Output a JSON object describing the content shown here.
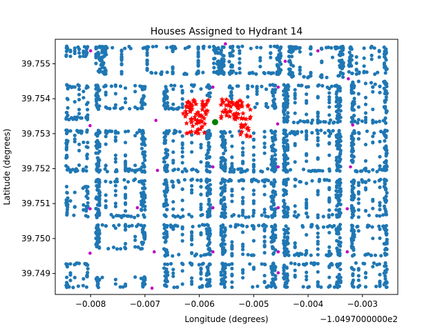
{
  "chart_data": {
    "type": "scatter",
    "title": "Houses Assigned to Hydrant 14",
    "xlabel": "Longitude (degrees)",
    "ylabel": "Latitude (degrees)",
    "x_offset_label": "−1.0497000000e2",
    "xlim": [
      -0.00865,
      -0.00235
    ],
    "ylim": [
      39.7484,
      39.7557
    ],
    "x_ticks": [
      -0.008,
      -0.007,
      -0.006,
      -0.005,
      -0.004,
      -0.003
    ],
    "x_tick_labels": [
      "−0.008",
      "−0.007",
      "−0.006",
      "−0.005",
      "−0.004",
      "−0.003"
    ],
    "y_ticks": [
      39.749,
      39.75,
      39.751,
      39.752,
      39.753,
      39.754,
      39.755
    ],
    "y_tick_labels": [
      "39.749",
      "39.750",
      "39.751",
      "39.752",
      "39.753",
      "39.754",
      "39.755"
    ],
    "grid": false,
    "colors": {
      "houses": "#1f77b4",
      "assigned": "#ff0000",
      "hydrant": "#008000",
      "other_hydrants": "#bf00bf"
    },
    "selected_hydrant": {
      "x": -0.00571,
      "y": 39.75333
    },
    "other_hydrants": [
      [
        -0.008,
        39.75537
      ],
      [
        -0.00552,
        39.75557
      ],
      [
        -0.00442,
        39.75507
      ],
      [
        -0.00382,
        39.75537
      ],
      [
        -0.00326,
        39.75457
      ],
      [
        -0.00575,
        39.75433
      ],
      [
        -0.00455,
        39.75433
      ],
      [
        -0.00801,
        39.75323
      ],
      [
        -0.0068,
        39.75338
      ],
      [
        -0.00456,
        39.75328
      ],
      [
        -0.00318,
        39.75325
      ],
      [
        -0.00677,
        39.75195
      ],
      [
        -0.00575,
        39.75205
      ],
      [
        -0.00455,
        39.75205
      ],
      [
        -0.00322,
        39.75205
      ],
      [
        -0.00801,
        39.75085
      ],
      [
        -0.00714,
        39.75088
      ],
      [
        -0.00575,
        39.75088
      ],
      [
        -0.00455,
        39.75088
      ],
      [
        -0.00328,
        39.75085
      ],
      [
        -0.00801,
        39.74958
      ],
      [
        -0.00683,
        39.74962
      ],
      [
        -0.00575,
        39.74962
      ],
      [
        -0.00455,
        39.74962
      ],
      [
        -0.00328,
        39.74962
      ],
      [
        -0.00687,
        39.74858
      ],
      [
        -0.00455,
        39.74902
      ]
    ],
    "blocks": [
      [
        -0.00845,
        -0.00805,
        39.7552,
        39.7555
      ],
      [
        -0.0079,
        -0.00555,
        39.7547,
        39.7555
      ],
      [
        -0.00545,
        -0.0045,
        39.7547,
        39.7555
      ],
      [
        -0.00435,
        -0.00335,
        39.7546,
        39.7555
      ],
      [
        -0.00325,
        -0.00255,
        39.7547,
        39.7555
      ],
      [
        -0.00845,
        -0.00805,
        39.7534,
        39.7544
      ],
      [
        -0.0079,
        -0.007,
        39.7537,
        39.7544
      ],
      [
        -0.00665,
        -0.0058,
        39.7537,
        39.7544
      ],
      [
        -0.00545,
        -0.0046,
        39.7537,
        39.7544
      ],
      [
        -0.00445,
        -0.0034,
        39.7533,
        39.7544
      ],
      [
        -0.0032,
        -0.00255,
        39.7533,
        39.7545
      ],
      [
        -0.00845,
        -0.00805,
        39.7519,
        39.7531
      ],
      [
        -0.0079,
        -0.007,
        39.7519,
        39.7531
      ],
      [
        -0.00665,
        -0.0058,
        39.7519,
        39.7531
      ],
      [
        -0.0056,
        -0.0046,
        39.7519,
        39.7531
      ],
      [
        -0.00445,
        -0.0034,
        39.7519,
        39.7531
      ],
      [
        -0.0032,
        -0.00255,
        39.7519,
        39.7531
      ],
      [
        -0.00845,
        -0.00805,
        39.7506,
        39.7515
      ],
      [
        -0.0079,
        -0.007,
        39.7506,
        39.7517
      ],
      [
        -0.00665,
        -0.0058,
        39.7506,
        39.7517
      ],
      [
        -0.0056,
        -0.0046,
        39.7506,
        39.7517
      ],
      [
        -0.00445,
        -0.0034,
        39.7506,
        39.7517
      ],
      [
        -0.0032,
        -0.00255,
        39.7506,
        39.7517
      ],
      [
        -0.0079,
        -0.007,
        39.7497,
        39.7504
      ],
      [
        -0.00665,
        -0.0058,
        39.7495,
        39.7504
      ],
      [
        -0.0056,
        -0.0046,
        39.7495,
        39.7504
      ],
      [
        -0.00445,
        -0.0034,
        39.7495,
        39.7504
      ],
      [
        -0.0032,
        -0.00255,
        39.7495,
        39.7504
      ],
      [
        -0.00845,
        -0.00805,
        39.7486,
        39.7493
      ],
      [
        -0.0079,
        -0.007,
        39.7486,
        39.7489
      ],
      [
        -0.00665,
        -0.0058,
        39.7486,
        39.7493
      ],
      [
        -0.0056,
        -0.0046,
        39.7486,
        39.7493
      ],
      [
        -0.00445,
        -0.0034,
        39.7486,
        39.7493
      ],
      [
        -0.0032,
        -0.00255,
        39.7486,
        39.7493
      ]
    ],
    "assigned_blocks": [
      [
        -0.0063,
        -0.0058,
        39.7534,
        39.754
      ],
      [
        -0.0056,
        -0.00505,
        39.7534,
        39.754
      ],
      [
        -0.00628,
        -0.0059,
        39.753,
        39.7534
      ],
      [
        -0.00525,
        -0.00505,
        39.7529,
        39.7533
      ]
    ]
  }
}
